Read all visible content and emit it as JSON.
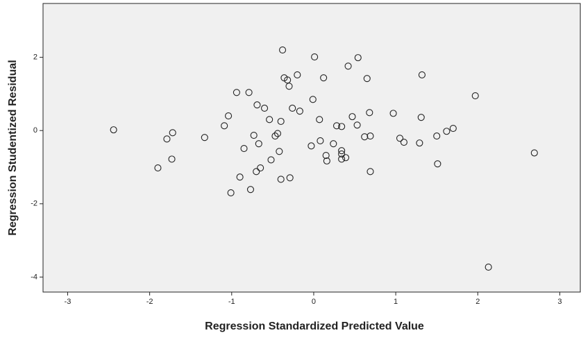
{
  "chart_data": {
    "type": "scatter",
    "x_label": "Regression Standardized Predicted Value",
    "y_label": "Regression Studentized Residual",
    "xlim": [
      -3.3,
      3.25
    ],
    "ylim": [
      -4.41,
      3.47
    ],
    "xticks": [
      -3,
      -2,
      -1,
      0,
      1,
      2,
      3
    ],
    "yticks": [
      -4,
      -2,
      0,
      2
    ],
    "color": "#222222",
    "background": "#f0f0f0",
    "x": [
      -2.44,
      -1.9,
      -1.79,
      -1.72,
      -1.73,
      -1.33,
      -1.09,
      -1.04,
      -1.01,
      -0.94,
      -0.9,
      -0.85,
      -0.79,
      -0.77,
      -0.73,
      -0.69,
      -0.67,
      -0.65,
      -0.7,
      -0.6,
      -0.54,
      -0.52,
      -0.47,
      -0.44,
      -0.42,
      -0.4,
      -0.4,
      -0.38,
      -0.36,
      -0.32,
      -0.3,
      -0.29,
      -0.26,
      -0.2,
      -0.17,
      -0.03,
      -0.01,
      0.01,
      0.07,
      0.08,
      0.12,
      0.15,
      0.16,
      0.24,
      0.28,
      0.34,
      0.34,
      0.34,
      0.34,
      0.39,
      0.42,
      0.47,
      0.53,
      0.54,
      0.62,
      0.65,
      0.68,
      0.69,
      0.69,
      0.97,
      1.05,
      1.1,
      1.29,
      1.31,
      1.32,
      1.5,
      1.51,
      1.62,
      1.7,
      1.97,
      2.13,
      2.69
    ],
    "values": [
      0.02,
      -1.02,
      -0.23,
      -0.06,
      -0.78,
      -0.19,
      0.13,
      0.4,
      -1.7,
      1.04,
      -1.27,
      -0.49,
      1.04,
      -1.61,
      -0.13,
      0.7,
      -0.36,
      -1.02,
      -1.12,
      0.61,
      0.3,
      -0.8,
      -0.15,
      -0.08,
      -0.57,
      0.25,
      -1.33,
      2.2,
      1.44,
      1.38,
      1.21,
      -1.29,
      0.61,
      1.52,
      0.53,
      -0.42,
      0.85,
      2.01,
      0.3,
      -0.28,
      1.44,
      -0.68,
      -0.83,
      -0.36,
      0.13,
      0.11,
      -0.55,
      -0.64,
      -0.78,
      -0.74,
      1.76,
      0.38,
      0.15,
      1.99,
      -0.17,
      1.42,
      0.49,
      -0.15,
      -1.12,
      0.47,
      -0.21,
      -0.32,
      -0.34,
      0.36,
      1.52,
      -0.15,
      -0.91,
      -0.02,
      0.06,
      0.95,
      -3.73,
      -0.61
    ]
  }
}
